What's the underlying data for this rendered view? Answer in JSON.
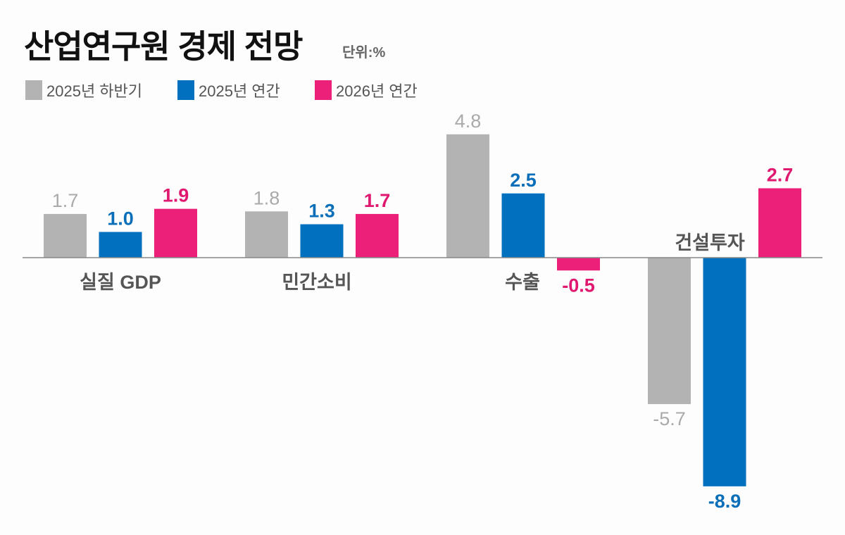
{
  "chart_data": {
    "type": "bar",
    "title": "산업연구원 경제 전망",
    "unit": "단위:%",
    "categories": [
      "실질 GDP",
      "민간소비",
      "수출",
      "건설투자"
    ],
    "series": [
      {
        "name": "2025년 하반기",
        "color": "#b3b3b3",
        "label_color": "#aaaaaa",
        "values": [
          1.7,
          1.8,
          4.8,
          -5.7
        ]
      },
      {
        "name": "2025년 연간",
        "color": "#0070bf",
        "label_color": "#0a6fb8",
        "values": [
          1.0,
          1.3,
          2.5,
          -8.9
        ]
      },
      {
        "name": "2026년 연간",
        "color": "#ec1f79",
        "label_color": "#e0186f",
        "values": [
          1.9,
          1.7,
          -0.5,
          2.7
        ]
      }
    ],
    "legend": "top-left",
    "grid": false,
    "ylim": [
      -9.2,
      5.2
    ]
  }
}
